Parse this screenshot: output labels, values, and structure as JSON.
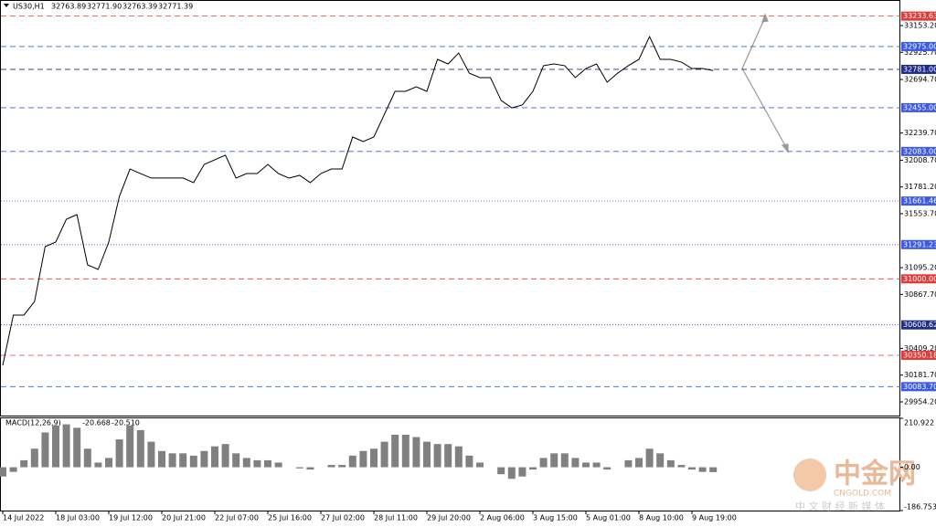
{
  "chart_data": {
    "type": "line",
    "title": "US30,H1",
    "header_values": [
      {
        "value": 32763.89,
        "label": "32763.89"
      },
      {
        "value": 32771.9,
        "label": "32771.90"
      },
      {
        "value": 32763.39,
        "label": "32763.39"
      },
      {
        "value": 32771.39,
        "label": "32771.39"
      }
    ],
    "categories": [
      "14 Jul 2022",
      null,
      null,
      null,
      null,
      "18 Jul 03:00",
      null,
      null,
      null,
      null,
      "19 Jul 12:00",
      null,
      null,
      null,
      null,
      "20 Jul 21:00",
      null,
      null,
      null,
      null,
      "22 Jul 07:00",
      null,
      null,
      null,
      null,
      "25 Jul 16:00",
      null,
      null,
      null,
      null,
      "27 Jul 02:00",
      null,
      null,
      null,
      null,
      "28 Jul 11:00",
      null,
      null,
      null,
      null,
      "29 Jul 20:00",
      null,
      null,
      null,
      null,
      "2 Aug 06:00",
      null,
      null,
      null,
      null,
      "3 Aug 15:00",
      null,
      null,
      null,
      null,
      "5 Aug 01:00",
      null,
      null,
      null,
      null,
      "8 Aug 10:00",
      null,
      null,
      null,
      null,
      "9 Aug 19:00",
      null,
      null
    ],
    "series": [
      {
        "color": "#000000",
        "values": [
          30265,
          30692,
          30692,
          30808,
          31274,
          31313,
          31507,
          31546,
          31119,
          31080,
          31313,
          31701,
          31934,
          31895,
          31857,
          31857,
          31857,
          31857,
          31818,
          31973,
          32012,
          32051,
          31857,
          31895,
          31895,
          31973,
          31895,
          31857,
          31880,
          31818,
          31895,
          31934,
          31934,
          32206,
          32167,
          32206,
          32400,
          32594,
          32594,
          32633,
          32594,
          32866,
          32827,
          32920,
          32749,
          32711,
          32711,
          32517,
          32454,
          32478,
          32594,
          32812,
          32827,
          32812,
          32711,
          32788,
          32827,
          32672,
          32749,
          32812,
          32866,
          33060,
          32866,
          32866,
          32843,
          32788,
          32788,
          32771
        ]
      }
    ],
    "ylim": [
      29837.7,
      33370.6
    ],
    "yticks": [
      {
        "value": 33153.2,
        "label": "33153.20"
      },
      {
        "value": 32925.7,
        "label": "32925.70"
      },
      {
        "value": 32694.7,
        "label": "32694.70"
      },
      {
        "value": 32239.7,
        "label": "32239.70"
      },
      {
        "value": 32008.7,
        "label": "32008.70"
      },
      {
        "value": 31781.2,
        "label": "31781.20"
      },
      {
        "value": 31553.7,
        "label": "31553.70"
      },
      {
        "value": 31095.2,
        "label": "31095.20"
      },
      {
        "value": 30867.7,
        "label": "30867.70"
      },
      {
        "value": 30409.2,
        "label": "30409.20"
      },
      {
        "value": 30181.7,
        "label": "30181.70"
      },
      {
        "value": 29954.2,
        "label": "29954.20"
      }
    ],
    "levels": [
      {
        "value": 33233.63,
        "label": "33233.63",
        "color": "#e03c3c",
        "style": "dashed"
      },
      {
        "value": 32975,
        "label": "32975.00",
        "color": "#3c5ae6",
        "style": "dashed"
      },
      {
        "value": 32781,
        "label": "32781.00",
        "color": "#1e2d8c",
        "style": "dashed"
      },
      {
        "value": 32455,
        "label": "32455.00",
        "color": "#3c5ae6",
        "style": "dashed"
      },
      {
        "value": 32083,
        "label": "32083.00",
        "color": "#3c5ae6",
        "style": "dashed"
      },
      {
        "value": 31661.46,
        "label": "31661.46",
        "color": "#3c5ae6",
        "style": "dotted"
      },
      {
        "value": 31291.23,
        "label": "31291.23",
        "color": "#3c5ae6",
        "style": "dotted"
      },
      {
        "value": 31000,
        "label": "31000.00",
        "color": "#e03c3c",
        "style": "dashed"
      },
      {
        "value": 30608.62,
        "label": "30608.62",
        "color": "#1e2d8c",
        "style": "dotted"
      },
      {
        "value": 30350.18,
        "label": "30350.18",
        "color": "#e03c3c",
        "style": "dashed"
      },
      {
        "value": 30083.7,
        "label": "30083.70",
        "color": "#3c5ae6",
        "style": "dashed"
      }
    ],
    "macd": {
      "type": "bar",
      "title": "MACD(12,26,9)",
      "readings": [
        {
          "value": -20.668,
          "label": "-20.668"
        },
        {
          "value": -20.51,
          "label": "-20.510"
        }
      ],
      "color": "#808080",
      "values": [
        -40,
        -20,
        30,
        80,
        150,
        180,
        185,
        170,
        80,
        20,
        40,
        120,
        180,
        160,
        110,
        70,
        60,
        60,
        50,
        70,
        90,
        100,
        60,
        40,
        30,
        30,
        20,
        0,
        -5,
        -10,
        0,
        10,
        10,
        50,
        70,
        80,
        110,
        140,
        140,
        130,
        110,
        100,
        100,
        90,
        50,
        20,
        0,
        -30,
        -50,
        -40,
        -10,
        40,
        60,
        60,
        40,
        20,
        20,
        -10,
        0,
        30,
        40,
        80,
        60,
        30,
        10,
        -10,
        -20,
        -21
      ],
      "ylim": [
        -186.753,
        210.922
      ],
      "yticks": [
        {
          "value": 210.922,
          "label": "210.922"
        },
        {
          "value": 0,
          "label": "0.00"
        },
        {
          "value": -186.753,
          "label": "-186.753"
        }
      ]
    }
  },
  "watermark": {
    "name": "中金网",
    "site": "CNGOLD.COM",
    "slogan": "中 文 财 经 新 媒 体"
  }
}
